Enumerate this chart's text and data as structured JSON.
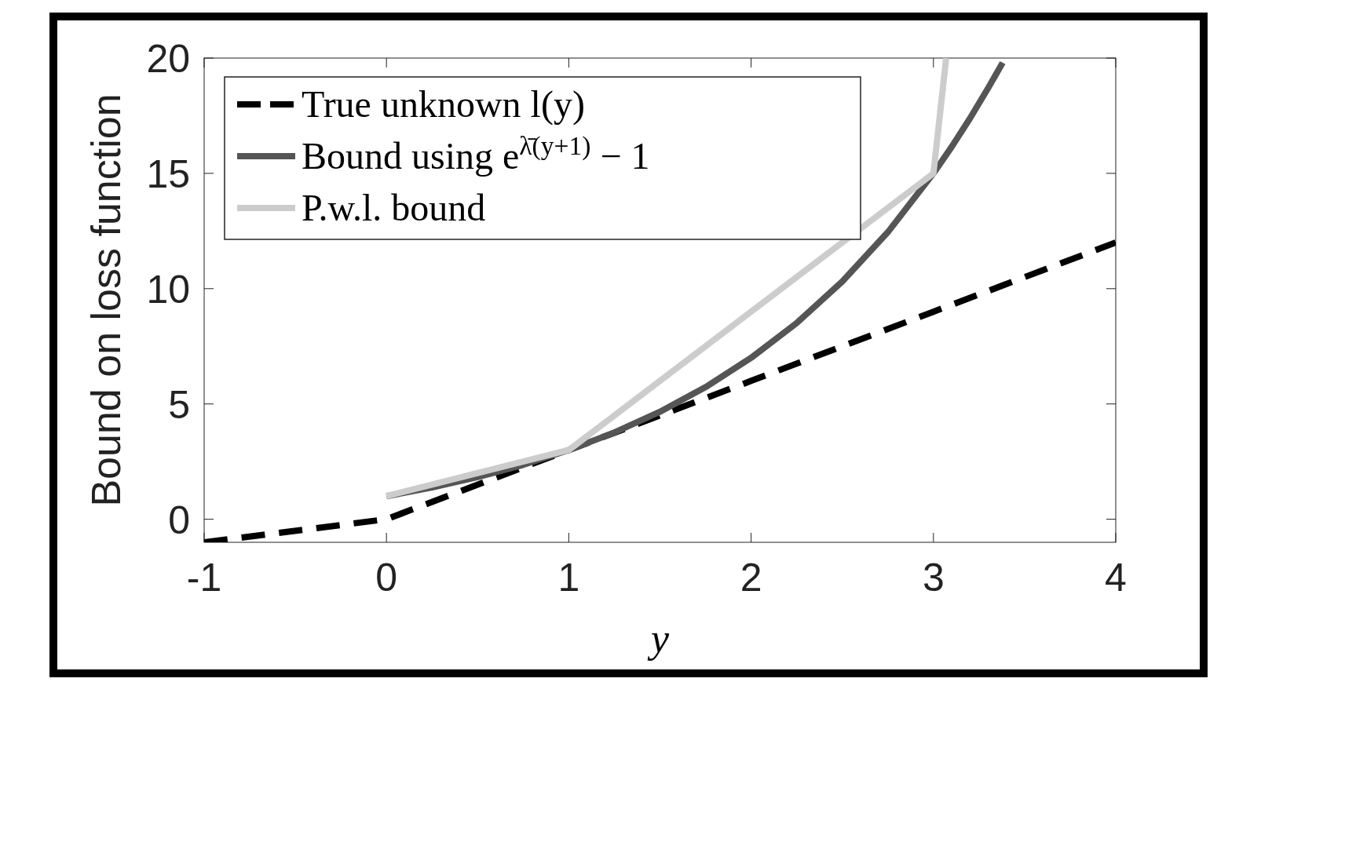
{
  "chart_data": {
    "type": "line",
    "xlabel": "y",
    "ylabel": "Bound on loss function",
    "xlim": [
      -1,
      4
    ],
    "ylim": [
      -1,
      20
    ],
    "xticks": [
      -1,
      0,
      1,
      2,
      3,
      4
    ],
    "yticks": [
      0,
      5,
      10,
      15,
      20
    ],
    "legend": "top left",
    "series": [
      {
        "name": "True unknown l(y)",
        "color": "#000000",
        "line_style": "dashed",
        "x": [
          -1,
          0,
          1,
          2,
          3,
          4
        ],
        "values": [
          -1,
          0,
          3,
          6,
          9,
          12
        ]
      },
      {
        "name": "Bound using e$^{λ̄(y+1)}$ − 1",
        "color": "#555555",
        "line_style": "solid",
        "x": [
          0,
          0.25,
          0.5,
          0.75,
          1,
          1.25,
          1.5,
          1.75,
          2,
          2.25,
          2.5,
          2.75,
          3,
          3.1,
          3.2,
          3.3,
          3.38
        ],
        "values": [
          1,
          1.38,
          1.83,
          2.36,
          3,
          3.76,
          4.66,
          5.73,
          7,
          8.51,
          10.31,
          12.45,
          15,
          16.15,
          17.38,
          18.7,
          19.8
        ]
      },
      {
        "name": "P.w.l. bound",
        "color": "#cccccc",
        "line_style": "solid",
        "x": [
          0,
          1,
          3,
          3.07
        ],
        "values": [
          1,
          3,
          15,
          20
        ]
      }
    ]
  }
}
